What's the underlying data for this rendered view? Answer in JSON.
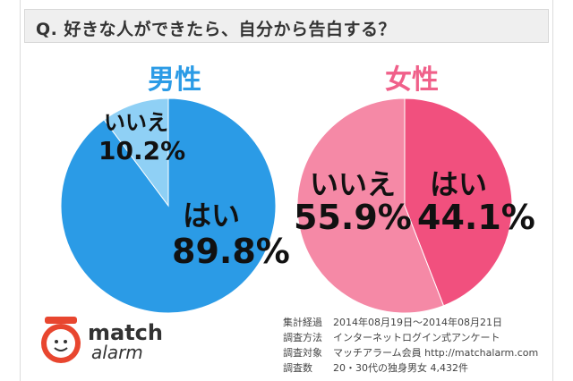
{
  "question": "Q. 好きな人ができたら、自分から告白する？",
  "chart_data": [
    {
      "type": "pie",
      "title": "男性",
      "labels": [
        "はい",
        "いいえ"
      ],
      "values": [
        89.8,
        10.2
      ],
      "value_labels": [
        "89.8%",
        "10.2%"
      ],
      "colors": [
        "#2b9be6",
        "#8fd0f5"
      ]
    },
    {
      "type": "pie",
      "title": "女性",
      "labels": [
        "はい",
        "いいえ"
      ],
      "values": [
        44.1,
        55.9
      ],
      "value_labels": [
        "44.1%",
        "55.9%"
      ],
      "colors": [
        "#f1507e",
        "#f589a6"
      ]
    }
  ],
  "logo": {
    "line1": "match",
    "line2": "alarm"
  },
  "survey_info": [
    {
      "key": "集計経過",
      "value": "2014年08月19日～2014年08月21日"
    },
    {
      "key": "調査方法",
      "value": "インターネットログイン式アンケート"
    },
    {
      "key": "調査対象",
      "value": "マッチアラーム会員 http://matchalarm.com"
    },
    {
      "key": "調査数",
      "value": "20・30代の独身男女 4,432件"
    }
  ]
}
